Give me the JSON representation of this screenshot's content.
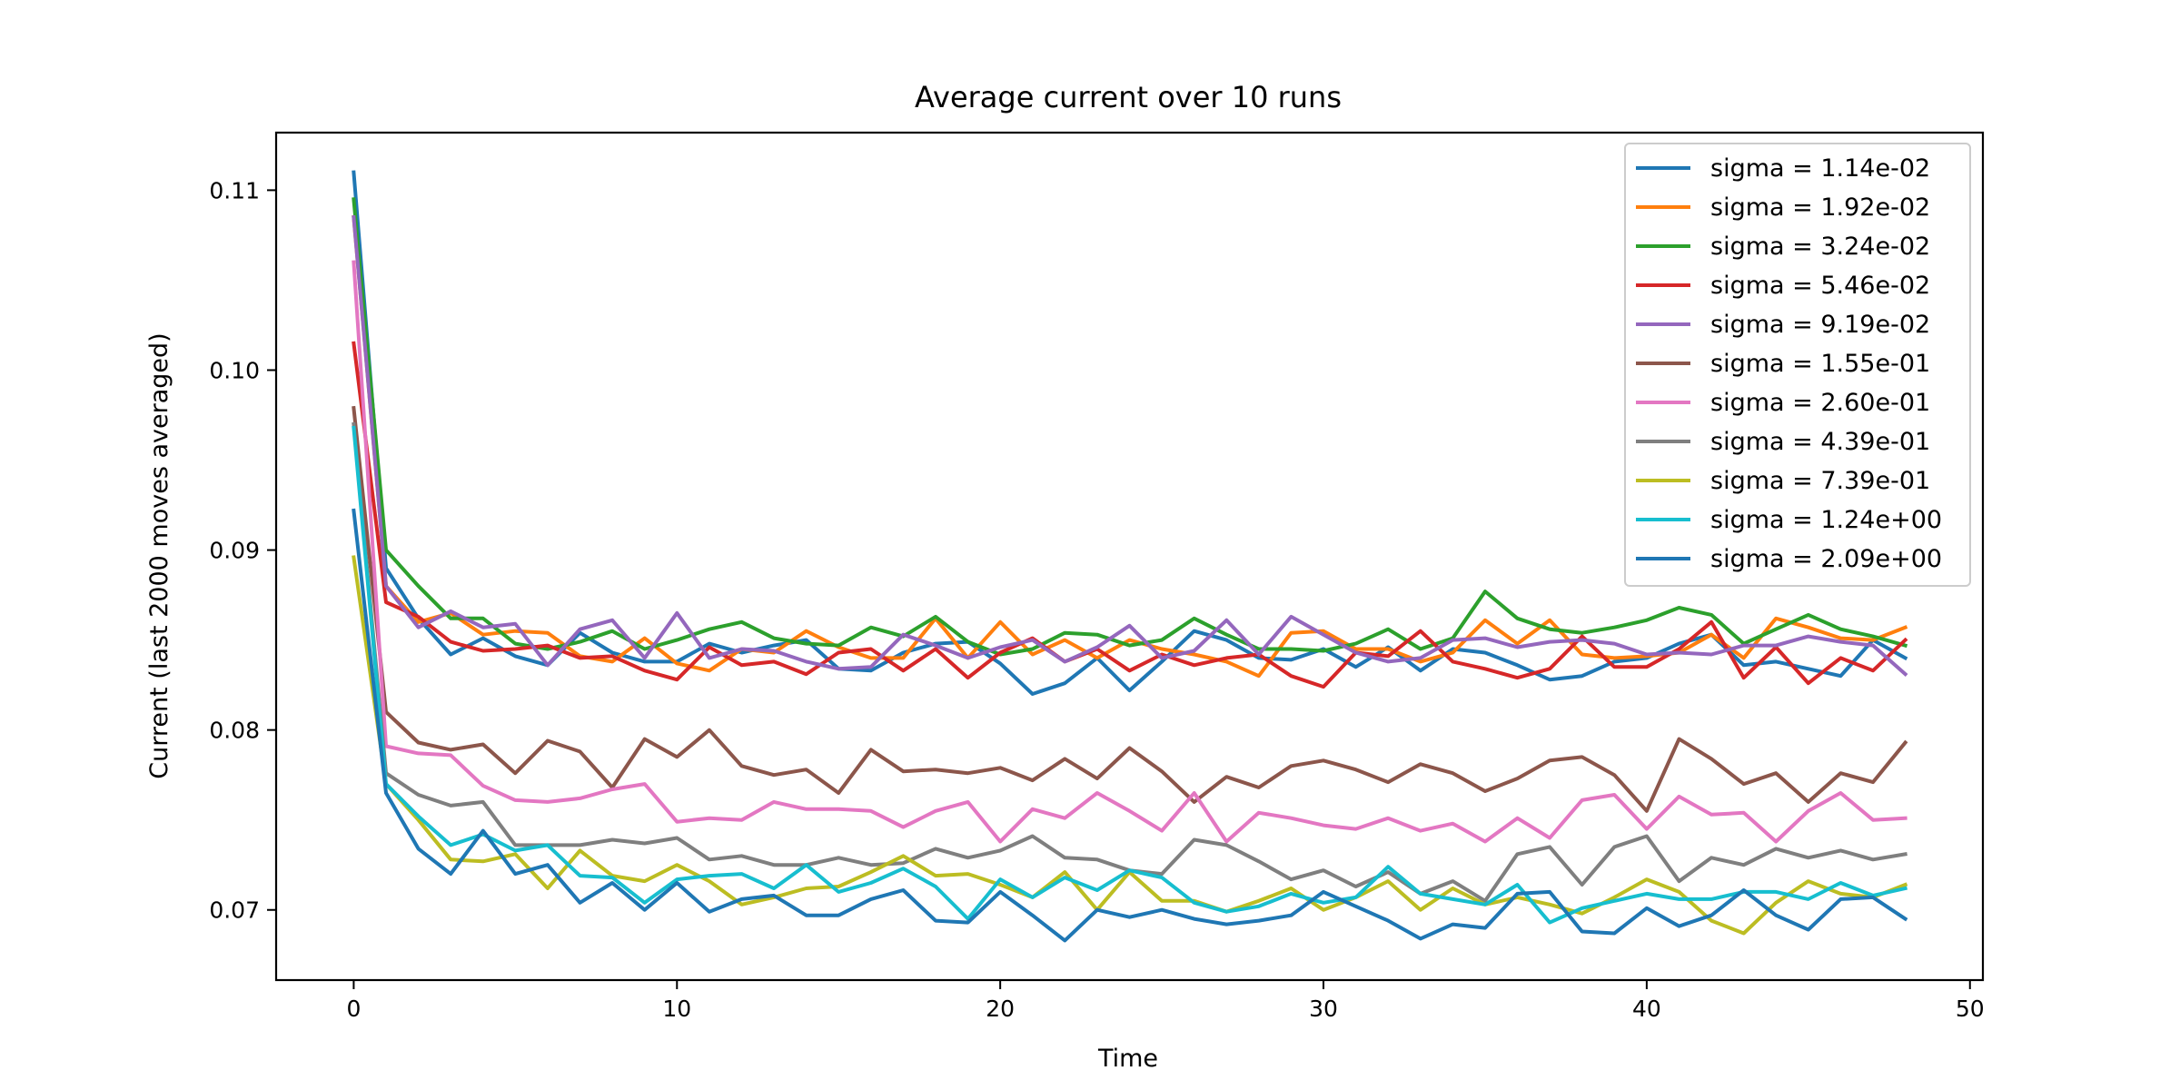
{
  "chart_data": {
    "type": "line",
    "title": "Average current over 10 runs",
    "xlabel": "Time",
    "ylabel": "Current (last 2000 moves averaged)",
    "xlim": [
      -2.4,
      50.4
    ],
    "ylim": [
      0.0661,
      0.1132
    ],
    "xticks": [
      0,
      10,
      20,
      30,
      40,
      50
    ],
    "yticks": [
      0.07,
      0.08,
      0.09,
      0.1,
      0.11
    ],
    "ytick_labels": [
      "0.07",
      "0.08",
      "0.09",
      "0.10",
      "0.11"
    ],
    "grid": false,
    "legend_position": "top-right",
    "x": [
      0,
      1,
      2,
      3,
      4,
      5,
      6,
      7,
      8,
      9,
      10,
      11,
      12,
      13,
      14,
      15,
      16,
      17,
      18,
      19,
      20,
      21,
      22,
      23,
      24,
      25,
      26,
      27,
      28,
      29,
      30,
      31,
      32,
      33,
      34,
      35,
      36,
      37,
      38,
      39,
      40,
      41,
      42,
      43,
      44,
      45,
      46,
      47,
      48
    ],
    "series": [
      {
        "name": "sigma = 1.14e-02",
        "color": "#1f77b4",
        "values": [
          0.111,
          0.089,
          0.0862,
          0.0842,
          0.0851,
          0.0841,
          0.0836,
          0.0854,
          0.0843,
          0.0838,
          0.0838,
          0.0848,
          0.0843,
          0.0847,
          0.085,
          0.0834,
          0.0833,
          0.0843,
          0.0848,
          0.0849,
          0.0837,
          0.082,
          0.0826,
          0.084,
          0.0822,
          0.0838,
          0.0855,
          0.085,
          0.084,
          0.0839,
          0.0845,
          0.0835,
          0.0846,
          0.0833,
          0.0845,
          0.0843,
          0.0836,
          0.0828,
          0.083,
          0.0838,
          0.084,
          0.0848,
          0.0853,
          0.0836,
          0.0838,
          0.0834,
          0.083,
          0.085,
          0.084
        ]
      },
      {
        "name": "sigma = 1.92e-02",
        "color": "#ff7f0e",
        "values": [
          0.1085,
          0.088,
          0.086,
          0.0865,
          0.0853,
          0.0855,
          0.0854,
          0.0841,
          0.0838,
          0.0851,
          0.0837,
          0.0833,
          0.0845,
          0.0843,
          0.0855,
          0.0846,
          0.084,
          0.084,
          0.0862,
          0.084,
          0.086,
          0.0842,
          0.085,
          0.084,
          0.085,
          0.0845,
          0.0842,
          0.0838,
          0.083,
          0.0854,
          0.0855,
          0.0845,
          0.0845,
          0.0838,
          0.0843,
          0.0861,
          0.0848,
          0.0861,
          0.0842,
          0.084,
          0.0841,
          0.0843,
          0.0853,
          0.084,
          0.0862,
          0.0857,
          0.0851,
          0.085,
          0.0857
        ]
      },
      {
        "name": "sigma = 3.24e-02",
        "color": "#2ca02c",
        "values": [
          0.1095,
          0.09,
          0.088,
          0.0862,
          0.0862,
          0.0848,
          0.0845,
          0.0849,
          0.0855,
          0.0845,
          0.085,
          0.0856,
          0.086,
          0.0851,
          0.0848,
          0.0847,
          0.0857,
          0.0852,
          0.0863,
          0.0849,
          0.0842,
          0.0845,
          0.0854,
          0.0853,
          0.0847,
          0.085,
          0.0862,
          0.0853,
          0.0845,
          0.0845,
          0.0844,
          0.0848,
          0.0856,
          0.0845,
          0.0851,
          0.0877,
          0.0862,
          0.0856,
          0.0854,
          0.0857,
          0.0861,
          0.0868,
          0.0864,
          0.0848,
          0.0856,
          0.0864,
          0.0856,
          0.0852,
          0.0847
        ]
      },
      {
        "name": "sigma = 5.46e-02",
        "color": "#d62728",
        "values": [
          0.1015,
          0.0871,
          0.0863,
          0.0849,
          0.0844,
          0.0845,
          0.0847,
          0.084,
          0.0841,
          0.0833,
          0.0828,
          0.0846,
          0.0836,
          0.0838,
          0.0831,
          0.0843,
          0.0845,
          0.0833,
          0.0845,
          0.0829,
          0.0843,
          0.0851,
          0.0838,
          0.0845,
          0.0833,
          0.0842,
          0.0836,
          0.084,
          0.0842,
          0.083,
          0.0824,
          0.0843,
          0.0841,
          0.0855,
          0.0838,
          0.0834,
          0.0829,
          0.0834,
          0.0852,
          0.0835,
          0.0835,
          0.0845,
          0.086,
          0.0829,
          0.0846,
          0.0826,
          0.084,
          0.0833,
          0.085
        ]
      },
      {
        "name": "sigma = 9.19e-02",
        "color": "#9467bd",
        "values": [
          0.1085,
          0.088,
          0.0857,
          0.0866,
          0.0857,
          0.0859,
          0.0836,
          0.0856,
          0.0861,
          0.084,
          0.0865,
          0.084,
          0.0845,
          0.0844,
          0.0838,
          0.0834,
          0.0835,
          0.0853,
          0.0847,
          0.084,
          0.0846,
          0.085,
          0.0838,
          0.0846,
          0.0858,
          0.084,
          0.0844,
          0.0861,
          0.0842,
          0.0863,
          0.0853,
          0.0843,
          0.0838,
          0.084,
          0.085,
          0.0851,
          0.0846,
          0.0849,
          0.085,
          0.0848,
          0.0842,
          0.0843,
          0.0842,
          0.0847,
          0.0847,
          0.0852,
          0.0849,
          0.0847,
          0.0831
        ]
      },
      {
        "name": "sigma = 1.55e-01",
        "color": "#8c564b",
        "values": [
          0.0979,
          0.081,
          0.0793,
          0.0789,
          0.0792,
          0.0776,
          0.0794,
          0.0788,
          0.0768,
          0.0795,
          0.0785,
          0.08,
          0.078,
          0.0775,
          0.0778,
          0.0765,
          0.0789,
          0.0777,
          0.0778,
          0.0776,
          0.0779,
          0.0772,
          0.0784,
          0.0773,
          0.079,
          0.0777,
          0.076,
          0.0774,
          0.0768,
          0.078,
          0.0783,
          0.0778,
          0.0771,
          0.0781,
          0.0776,
          0.0766,
          0.0773,
          0.0783,
          0.0785,
          0.0775,
          0.0755,
          0.0795,
          0.0784,
          0.077,
          0.0776,
          0.076,
          0.0776,
          0.0771,
          0.0793
        ]
      },
      {
        "name": "sigma = 2.60e-01",
        "color": "#e377c2",
        "values": [
          0.106,
          0.0791,
          0.0787,
          0.0786,
          0.0769,
          0.0761,
          0.076,
          0.0762,
          0.0767,
          0.077,
          0.0749,
          0.0751,
          0.075,
          0.076,
          0.0756,
          0.0756,
          0.0755,
          0.0746,
          0.0755,
          0.076,
          0.0738,
          0.0756,
          0.0751,
          0.0765,
          0.0755,
          0.0744,
          0.0765,
          0.0738,
          0.0754,
          0.0751,
          0.0747,
          0.0745,
          0.0751,
          0.0744,
          0.0748,
          0.0738,
          0.0751,
          0.074,
          0.0761,
          0.0764,
          0.0745,
          0.0763,
          0.0753,
          0.0754,
          0.0738,
          0.0755,
          0.0765,
          0.075,
          0.0751
        ]
      },
      {
        "name": "sigma = 4.39e-01",
        "color": "#7f7f7f",
        "values": [
          0.097,
          0.0776,
          0.0764,
          0.0758,
          0.076,
          0.0736,
          0.0736,
          0.0736,
          0.0739,
          0.0737,
          0.074,
          0.0728,
          0.073,
          0.0725,
          0.0725,
          0.0729,
          0.0725,
          0.0726,
          0.0734,
          0.0729,
          0.0733,
          0.0741,
          0.0729,
          0.0728,
          0.0722,
          0.072,
          0.0739,
          0.0736,
          0.0727,
          0.0717,
          0.0722,
          0.0713,
          0.0721,
          0.0709,
          0.0716,
          0.0705,
          0.0731,
          0.0735,
          0.0714,
          0.0735,
          0.0741,
          0.0716,
          0.0729,
          0.0725,
          0.0734,
          0.0729,
          0.0733,
          0.0728,
          0.0731
        ]
      },
      {
        "name": "sigma = 7.39e-01",
        "color": "#bcbd22",
        "values": [
          0.0896,
          0.077,
          0.075,
          0.0728,
          0.0727,
          0.0731,
          0.0712,
          0.0733,
          0.0719,
          0.0716,
          0.0725,
          0.0716,
          0.0703,
          0.0707,
          0.0712,
          0.0713,
          0.0721,
          0.073,
          0.0719,
          0.072,
          0.0714,
          0.0707,
          0.0721,
          0.07,
          0.0721,
          0.0705,
          0.0705,
          0.0699,
          0.0705,
          0.0712,
          0.07,
          0.0707,
          0.0716,
          0.07,
          0.0712,
          0.0703,
          0.0707,
          0.0703,
          0.0698,
          0.0707,
          0.0717,
          0.071,
          0.0694,
          0.0687,
          0.0704,
          0.0716,
          0.0709,
          0.0707,
          0.0714
        ]
      },
      {
        "name": "sigma = 1.24e+00",
        "color": "#17becf",
        "values": [
          0.0968,
          0.077,
          0.0752,
          0.0736,
          0.0742,
          0.0733,
          0.0736,
          0.0719,
          0.0718,
          0.0704,
          0.0717,
          0.0719,
          0.072,
          0.0712,
          0.0725,
          0.071,
          0.0715,
          0.0723,
          0.0713,
          0.0695,
          0.0717,
          0.0707,
          0.0718,
          0.0711,
          0.0722,
          0.0718,
          0.0704,
          0.0699,
          0.0702,
          0.0709,
          0.0704,
          0.0707,
          0.0724,
          0.0709,
          0.0706,
          0.0703,
          0.0714,
          0.0693,
          0.0701,
          0.0705,
          0.0709,
          0.0706,
          0.0706,
          0.071,
          0.071,
          0.0706,
          0.0715,
          0.0708,
          0.0712
        ]
      },
      {
        "name": "sigma = 2.09e+00",
        "color": "#1f77b4",
        "values": [
          0.0922,
          0.0765,
          0.0734,
          0.072,
          0.0744,
          0.072,
          0.0725,
          0.0704,
          0.0715,
          0.07,
          0.0715,
          0.0699,
          0.0706,
          0.0708,
          0.0697,
          0.0697,
          0.0706,
          0.0711,
          0.0694,
          0.0693,
          0.071,
          0.0697,
          0.0683,
          0.07,
          0.0696,
          0.07,
          0.0695,
          0.0692,
          0.0694,
          0.0697,
          0.071,
          0.0702,
          0.0694,
          0.0684,
          0.0692,
          0.069,
          0.0709,
          0.071,
          0.0688,
          0.0687,
          0.0701,
          0.0691,
          0.0697,
          0.0711,
          0.0697,
          0.0689,
          0.0706,
          0.0707,
          0.0695
        ]
      }
    ]
  }
}
